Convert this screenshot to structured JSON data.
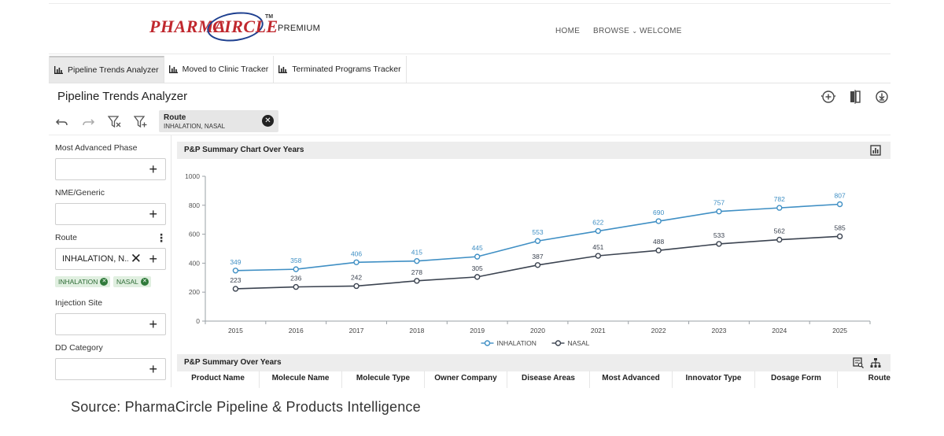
{
  "brand": {
    "logo_left": "PHARMA",
    "logo_right": "CIRCLE",
    "tm": "TM",
    "tier": "PREMIUM",
    "red": "#c0282e",
    "blue": "#1d3f8f"
  },
  "topnav": {
    "home": "HOME",
    "browse": "BROWSE",
    "welcome": "WELCOME"
  },
  "tabs": [
    {
      "label": "Pipeline Trends Analyzer",
      "active": true
    },
    {
      "label": "Moved to Clinic Tracker",
      "active": false
    },
    {
      "label": "Terminated Programs Tracker",
      "active": false
    }
  ],
  "page_title": "Pipeline Trends Analyzer",
  "route_chip": {
    "title": "Route",
    "value": "INHALATION, NASAL"
  },
  "filters": {
    "most_advanced_phase": "Most Advanced Phase",
    "nme_generic": "NME/Generic",
    "route": "Route",
    "route_value": "INHALATION, N...",
    "route_tags": [
      "INHALATION",
      "NASAL"
    ],
    "injection_site": "Injection Site",
    "dd_category": "DD Category"
  },
  "chart_panel": {
    "title": "P&P Summary Chart Over Years"
  },
  "table_panel": {
    "title": "P&P Summary Over Years"
  },
  "table_headers": [
    "Product Name",
    "Molecule Name",
    "Molecule Type",
    "Owner Company",
    "Disease Areas",
    "Most Advanced",
    "Innovator Type",
    "Dosage Form",
    "Route"
  ],
  "chart_data": {
    "type": "line",
    "x": [
      "2015",
      "2016",
      "2017",
      "2018",
      "2019",
      "2020",
      "2021",
      "2022",
      "2023",
      "2024",
      "2025"
    ],
    "series": [
      {
        "name": "INHALATION",
        "color": "#3f8fc4",
        "values": [
          349,
          358,
          406,
          415,
          445,
          553,
          622,
          690,
          757,
          782,
          807
        ]
      },
      {
        "name": "NASAL",
        "color": "#3b4350",
        "values": [
          223,
          236,
          242,
          278,
          305,
          387,
          451,
          488,
          533,
          562,
          585
        ]
      }
    ],
    "yticks": [
      "0",
      "200",
      "400",
      "600",
      "800",
      "1000"
    ],
    "ylim": [
      0,
      1000
    ],
    "legend": "bottom-center",
    "grid": false
  },
  "source_note": "Source: PharmaCircle Pipeline & Products Intelligence"
}
